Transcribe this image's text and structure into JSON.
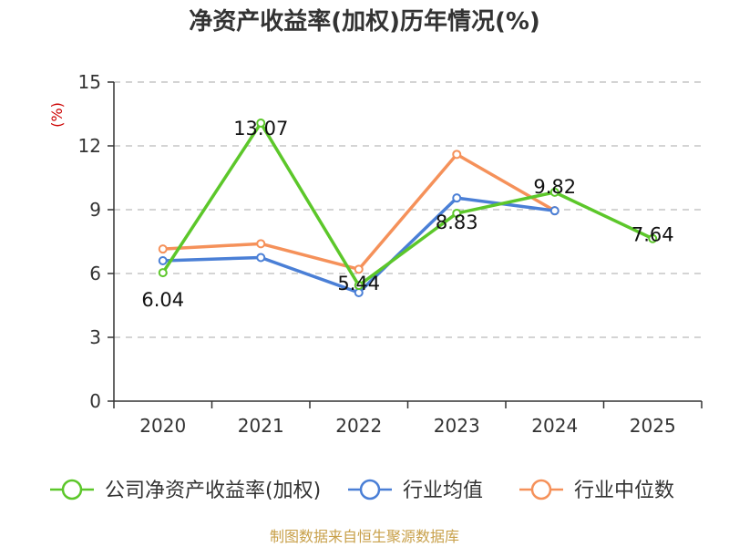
{
  "title": "净资产收益率(加权)历年情况(%)",
  "unit_label": "(%)",
  "source": "制图数据来自恒生聚源数据库",
  "chart_data": {
    "type": "line",
    "title": "净资产收益率(加权)历年情况(%)",
    "xlabel": "",
    "ylabel": "(%)",
    "categories": [
      "2020",
      "2021",
      "2022",
      "2023",
      "2024",
      "2025"
    ],
    "ylim": [
      0,
      15
    ],
    "yticks": [
      "0",
      "3",
      "6",
      "9",
      "12",
      "15"
    ],
    "grid": true,
    "legend_position": "bottom",
    "series": [
      {
        "name": "公司净资产收益率(加权)",
        "color": "#5cc72a",
        "values": [
          6.04,
          13.07,
          5.44,
          8.83,
          9.82,
          7.64
        ],
        "labels": [
          "6.04",
          "13.07",
          "5.44",
          "8.83",
          "9.82",
          "7.64"
        ]
      },
      {
        "name": "行业均值",
        "color": "#4a7fd6",
        "values": [
          6.6,
          6.75,
          5.1,
          9.55,
          8.95,
          null
        ]
      },
      {
        "name": "行业中位数",
        "color": "#f5915a",
        "values": [
          7.15,
          7.4,
          6.2,
          11.6,
          8.95,
          null
        ]
      }
    ]
  }
}
